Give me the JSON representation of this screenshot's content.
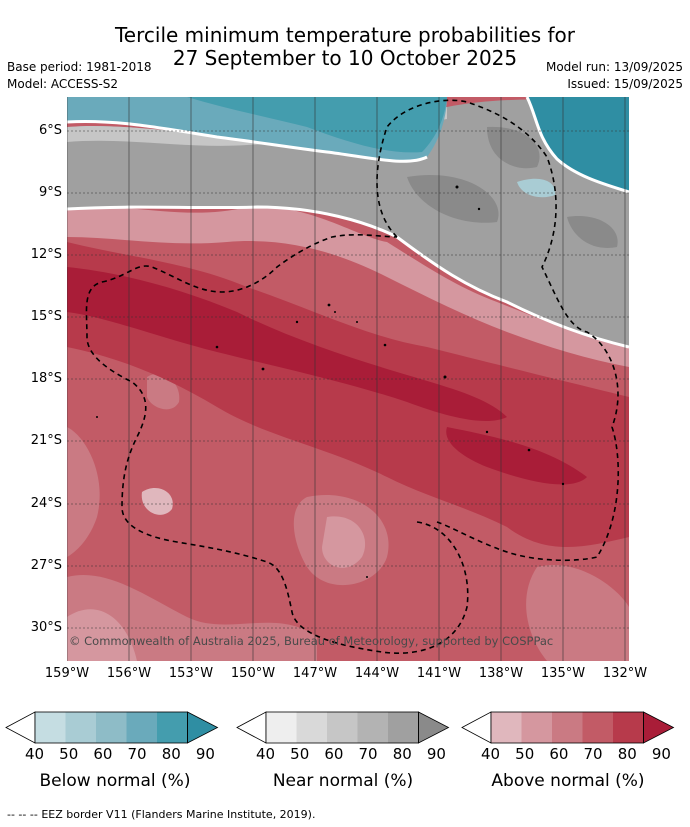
{
  "header": {
    "title_line1": "Tercile minimum temperature probabilities for",
    "title_line2": "27 September to 10 October 2025",
    "base_period": "Base period: 1981-2018",
    "model": "Model: ACCESS-S2",
    "model_run": "Model run: 13/09/2025",
    "issued": "Issued: 15/09/2025"
  },
  "map": {
    "lat_labels": [
      "6°S",
      "9°S",
      "12°S",
      "15°S",
      "18°S",
      "21°S",
      "24°S",
      "27°S",
      "30°S"
    ],
    "lon_labels": [
      "159°W",
      "156°W",
      "153°W",
      "150°W",
      "147°W",
      "144°W",
      "141°W",
      "138°W",
      "135°W",
      "132°W"
    ],
    "copyright": "© Commonwealth of Australia 2025, Bureau of Meteorology, supported by COSPPac"
  },
  "colorbars": [
    {
      "title": "Below normal (%)",
      "ticks": [
        "40",
        "50",
        "60",
        "70",
        "80",
        "90"
      ],
      "colors": [
        "#c5dde2",
        "#a9ccd4",
        "#8ebcc7",
        "#6aaabb",
        "#449dae",
        "#2f8ea3"
      ]
    },
    {
      "title": "Near normal (%)",
      "ticks": [
        "40",
        "50",
        "60",
        "70",
        "80",
        "90"
      ],
      "colors": [
        "#eeeeee",
        "#d9d9d9",
        "#c6c6c6",
        "#b3b3b3",
        "#a0a0a0",
        "#8a8a8a"
      ]
    },
    {
      "title": "Above normal (%)",
      "ticks": [
        "40",
        "50",
        "60",
        "70",
        "80",
        "90"
      ],
      "colors": [
        "#e0b7bd",
        "#d5979f",
        "#ca7a83",
        "#c25b66",
        "#b73a4b",
        "#a91d38"
      ]
    }
  ],
  "footer": {
    "legend_symbol": "-- -- --",
    "legend_text": "EEZ border V11 (Flanders Marine Institute, 2019)."
  }
}
